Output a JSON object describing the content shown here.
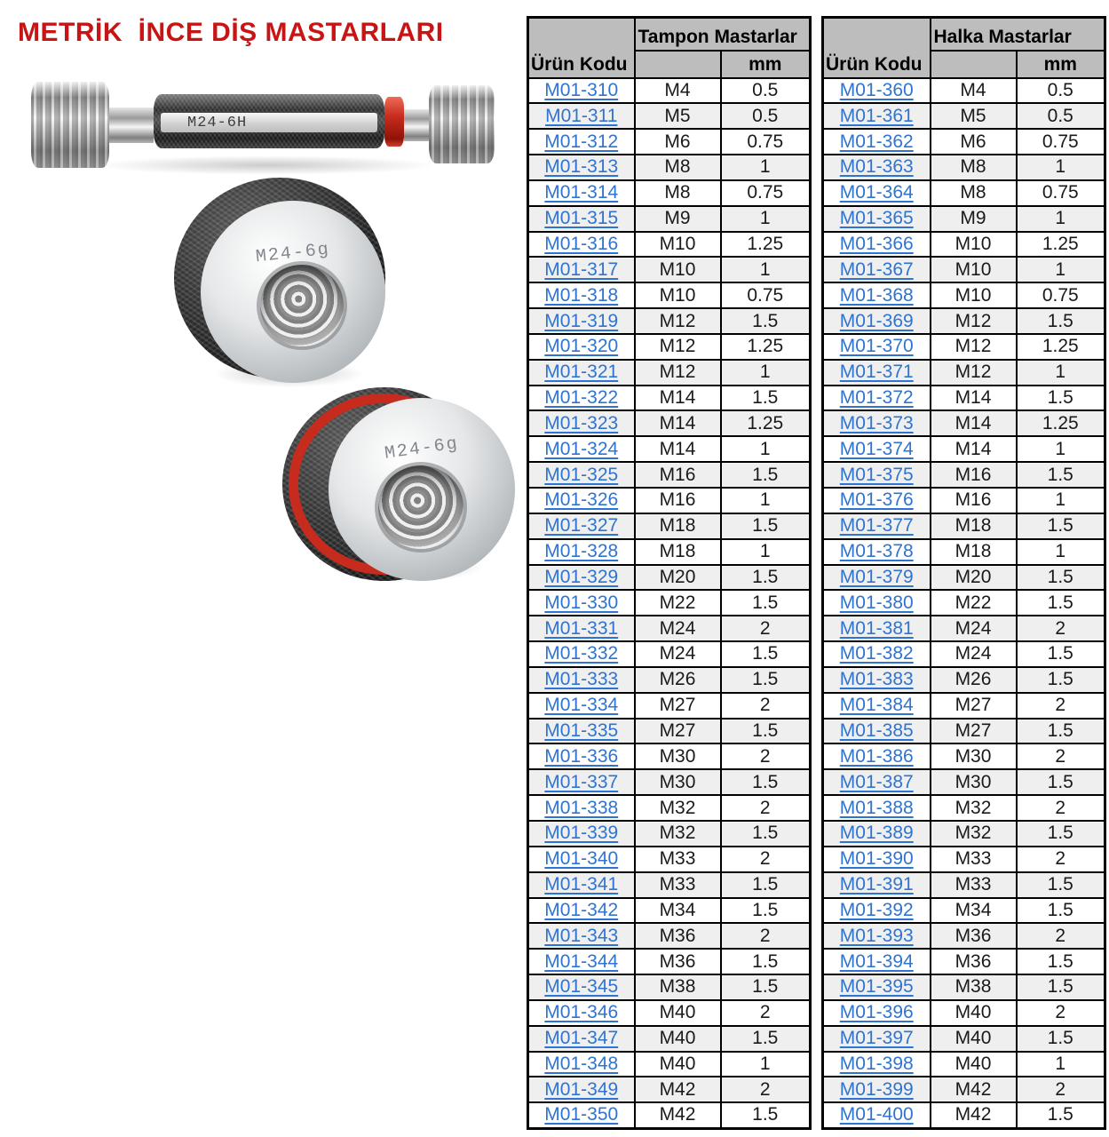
{
  "page_title": "METRİK  İNCE DİŞ MASTARLARI",
  "photos": {
    "plug_gauge_label": "M24-6H",
    "ring_gauge_top_label": "M24-6g",
    "ring_gauge_bottom_label": "M24-6g"
  },
  "colors": {
    "title_red": "#c81414",
    "link_blue": "#2e74d0",
    "header_gray": "#bdbdbd",
    "band_gray": "#efefef",
    "gauge_red": "#c62b1e"
  },
  "tables": [
    {
      "product_code_header": "Ürün Kodu",
      "group_header": "Tampon Mastarlar",
      "unit_header": "mm",
      "rows": [
        {
          "code": "M01-310",
          "size": "M4",
          "mm": "0.5"
        },
        {
          "code": "M01-311",
          "size": "M5",
          "mm": "0.5"
        },
        {
          "code": "M01-312",
          "size": "M6",
          "mm": "0.75"
        },
        {
          "code": "M01-313",
          "size": "M8",
          "mm": "1"
        },
        {
          "code": "M01-314",
          "size": "M8",
          "mm": "0.75"
        },
        {
          "code": "M01-315",
          "size": "M9",
          "mm": "1"
        },
        {
          "code": "M01-316",
          "size": "M10",
          "mm": "1.25"
        },
        {
          "code": "M01-317",
          "size": "M10",
          "mm": "1"
        },
        {
          "code": "M01-318",
          "size": "M10",
          "mm": "0.75"
        },
        {
          "code": "M01-319",
          "size": "M12",
          "mm": "1.5"
        },
        {
          "code": "M01-320",
          "size": "M12",
          "mm": "1.25"
        },
        {
          "code": "M01-321",
          "size": "M12",
          "mm": "1"
        },
        {
          "code": "M01-322",
          "size": "M14",
          "mm": "1.5"
        },
        {
          "code": "M01-323",
          "size": "M14",
          "mm": "1.25"
        },
        {
          "code": "M01-324",
          "size": "M14",
          "mm": "1"
        },
        {
          "code": "M01-325",
          "size": "M16",
          "mm": "1.5"
        },
        {
          "code": "M01-326",
          "size": "M16",
          "mm": "1"
        },
        {
          "code": "M01-327",
          "size": "M18",
          "mm": "1.5"
        },
        {
          "code": "M01-328",
          "size": "M18",
          "mm": "1"
        },
        {
          "code": "M01-329",
          "size": "M20",
          "mm": "1.5"
        },
        {
          "code": "M01-330",
          "size": "M22",
          "mm": "1.5"
        },
        {
          "code": "M01-331",
          "size": "M24",
          "mm": "2"
        },
        {
          "code": "M01-332",
          "size": "M24",
          "mm": "1.5"
        },
        {
          "code": "M01-333",
          "size": "M26",
          "mm": "1.5"
        },
        {
          "code": "M01-334",
          "size": "M27",
          "mm": "2"
        },
        {
          "code": "M01-335",
          "size": "M27",
          "mm": "1.5"
        },
        {
          "code": "M01-336",
          "size": "M30",
          "mm": "2"
        },
        {
          "code": "M01-337",
          "size": "M30",
          "mm": "1.5"
        },
        {
          "code": "M01-338",
          "size": "M32",
          "mm": "2"
        },
        {
          "code": "M01-339",
          "size": "M32",
          "mm": "1.5"
        },
        {
          "code": "M01-340",
          "size": "M33",
          "mm": "2"
        },
        {
          "code": "M01-341",
          "size": "M33",
          "mm": "1.5"
        },
        {
          "code": "M01-342",
          "size": "M34",
          "mm": "1.5"
        },
        {
          "code": "M01-343",
          "size": "M36",
          "mm": "2"
        },
        {
          "code": "M01-344",
          "size": "M36",
          "mm": "1.5"
        },
        {
          "code": "M01-345",
          "size": "M38",
          "mm": "1.5"
        },
        {
          "code": "M01-346",
          "size": "M40",
          "mm": "2"
        },
        {
          "code": "M01-347",
          "size": "M40",
          "mm": "1.5"
        },
        {
          "code": "M01-348",
          "size": "M40",
          "mm": "1"
        },
        {
          "code": "M01-349",
          "size": "M42",
          "mm": "2"
        },
        {
          "code": "M01-350",
          "size": "M42",
          "mm": "1.5"
        }
      ]
    },
    {
      "product_code_header": "Ürün Kodu",
      "group_header": "Halka Mastarlar",
      "unit_header": "mm",
      "rows": [
        {
          "code": "M01-360",
          "size": "M4",
          "mm": "0.5"
        },
        {
          "code": "M01-361",
          "size": "M5",
          "mm": "0.5"
        },
        {
          "code": "M01-362",
          "size": "M6",
          "mm": "0.75"
        },
        {
          "code": "M01-363",
          "size": "M8",
          "mm": "1"
        },
        {
          "code": "M01-364",
          "size": "M8",
          "mm": "0.75"
        },
        {
          "code": "M01-365",
          "size": "M9",
          "mm": "1"
        },
        {
          "code": "M01-366",
          "size": "M10",
          "mm": "1.25"
        },
        {
          "code": "M01-367",
          "size": "M10",
          "mm": "1"
        },
        {
          "code": "M01-368",
          "size": "M10",
          "mm": "0.75"
        },
        {
          "code": "M01-369",
          "size": "M12",
          "mm": "1.5"
        },
        {
          "code": "M01-370",
          "size": "M12",
          "mm": "1.25"
        },
        {
          "code": "M01-371",
          "size": "M12",
          "mm": "1"
        },
        {
          "code": "M01-372",
          "size": "M14",
          "mm": "1.5"
        },
        {
          "code": "M01-373",
          "size": "M14",
          "mm": "1.25"
        },
        {
          "code": "M01-374",
          "size": "M14",
          "mm": "1"
        },
        {
          "code": "M01-375",
          "size": "M16",
          "mm": "1.5"
        },
        {
          "code": "M01-376",
          "size": "M16",
          "mm": "1"
        },
        {
          "code": "M01-377",
          "size": "M18",
          "mm": "1.5"
        },
        {
          "code": "M01-378",
          "size": "M18",
          "mm": "1"
        },
        {
          "code": "M01-379",
          "size": "M20",
          "mm": "1.5"
        },
        {
          "code": "M01-380",
          "size": "M22",
          "mm": "1.5"
        },
        {
          "code": "M01-381",
          "size": "M24",
          "mm": "2"
        },
        {
          "code": "M01-382",
          "size": "M24",
          "mm": "1.5"
        },
        {
          "code": "M01-383",
          "size": "M26",
          "mm": "1.5"
        },
        {
          "code": "M01-384",
          "size": "M27",
          "mm": "2"
        },
        {
          "code": "M01-385",
          "size": "M27",
          "mm": "1.5"
        },
        {
          "code": "M01-386",
          "size": "M30",
          "mm": "2"
        },
        {
          "code": "M01-387",
          "size": "M30",
          "mm": "1.5"
        },
        {
          "code": "M01-388",
          "size": "M32",
          "mm": "2"
        },
        {
          "code": "M01-389",
          "size": "M32",
          "mm": "1.5"
        },
        {
          "code": "M01-390",
          "size": "M33",
          "mm": "2"
        },
        {
          "code": "M01-391",
          "size": "M33",
          "mm": "1.5"
        },
        {
          "code": "M01-392",
          "size": "M34",
          "mm": "1.5"
        },
        {
          "code": "M01-393",
          "size": "M36",
          "mm": "2"
        },
        {
          "code": "M01-394",
          "size": "M36",
          "mm": "1.5"
        },
        {
          "code": "M01-395",
          "size": "M38",
          "mm": "1.5"
        },
        {
          "code": "M01-396",
          "size": "M40",
          "mm": "2"
        },
        {
          "code": "M01-397",
          "size": "M40",
          "mm": "1.5"
        },
        {
          "code": "M01-398",
          "size": "M40",
          "mm": "1"
        },
        {
          "code": "M01-399",
          "size": "M42",
          "mm": "2"
        },
        {
          "code": "M01-400",
          "size": "M42",
          "mm": "1.5"
        }
      ]
    }
  ]
}
